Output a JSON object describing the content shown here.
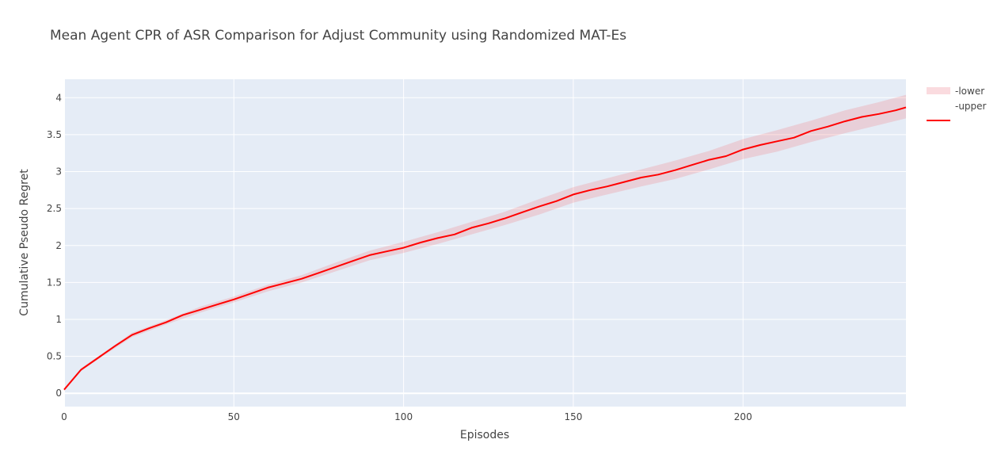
{
  "chart_data": {
    "type": "line",
    "title": "Mean Agent CPR of ASR Comparison for Adjust Community using Randomized MAT-Es",
    "xlabel": "Episodes",
    "ylabel": "Cumulative Pseudo Regret",
    "xlim": [
      0,
      248
    ],
    "ylim": [
      -0.18,
      4.25
    ],
    "x_ticks": [
      "0",
      "50",
      "100",
      "150",
      "200"
    ],
    "y_ticks": [
      "0",
      "0.5",
      "1",
      "1.5",
      "2",
      "2.5",
      "3",
      "3.5",
      "4"
    ],
    "grid": true,
    "legend_position": "top-right",
    "colors": {
      "plot_background": "#E5ECF6",
      "grid": "#FFFFFF",
      "mean_line": "#FF0000",
      "band": "rgba(255,0,0,0.12)",
      "band_legend": "#FADBDF"
    },
    "series": [
      {
        "name": "-lower",
        "role": "band-lower",
        "x": [
          0,
          5,
          10,
          15,
          20,
          30,
          40,
          50,
          60,
          70,
          80,
          90,
          100,
          110,
          120,
          130,
          140,
          150,
          160,
          170,
          180,
          190,
          200,
          210,
          220,
          230,
          240,
          248
        ],
        "values": [
          0.03,
          0.3,
          0.46,
          0.61,
          0.76,
          0.93,
          1.09,
          1.23,
          1.38,
          1.5,
          1.65,
          1.8,
          1.9,
          2.02,
          2.15,
          2.28,
          2.42,
          2.58,
          2.69,
          2.8,
          2.9,
          3.03,
          3.17,
          3.27,
          3.4,
          3.52,
          3.63,
          3.72
        ]
      },
      {
        "name": "-upper",
        "role": "band-upper",
        "x": [
          0,
          5,
          10,
          15,
          20,
          30,
          40,
          50,
          60,
          70,
          80,
          90,
          100,
          110,
          120,
          130,
          140,
          150,
          160,
          170,
          180,
          190,
          200,
          210,
          220,
          230,
          240,
          248
        ],
        "values": [
          0.07,
          0.34,
          0.5,
          0.66,
          0.82,
          0.99,
          1.17,
          1.31,
          1.47,
          1.6,
          1.77,
          1.93,
          2.05,
          2.18,
          2.32,
          2.46,
          2.63,
          2.79,
          2.91,
          3.03,
          3.15,
          3.28,
          3.44,
          3.56,
          3.69,
          3.83,
          3.94,
          4.04
        ]
      },
      {
        "name": "",
        "role": "mean",
        "x": [
          0,
          5,
          10,
          15,
          20,
          25,
          30,
          35,
          40,
          45,
          50,
          55,
          60,
          65,
          70,
          75,
          80,
          85,
          90,
          95,
          100,
          105,
          110,
          115,
          120,
          125,
          130,
          135,
          140,
          145,
          150,
          155,
          160,
          165,
          170,
          175,
          180,
          185,
          190,
          195,
          200,
          205,
          210,
          215,
          220,
          225,
          230,
          235,
          240,
          245,
          248
        ],
        "values": [
          0.05,
          0.32,
          0.48,
          0.64,
          0.79,
          0.88,
          0.96,
          1.06,
          1.13,
          1.2,
          1.27,
          1.35,
          1.43,
          1.49,
          1.55,
          1.63,
          1.71,
          1.79,
          1.87,
          1.92,
          1.97,
          2.04,
          2.1,
          2.15,
          2.24,
          2.3,
          2.37,
          2.45,
          2.53,
          2.6,
          2.69,
          2.75,
          2.8,
          2.86,
          2.92,
          2.96,
          3.02,
          3.09,
          3.16,
          3.21,
          3.3,
          3.36,
          3.41,
          3.46,
          3.55,
          3.61,
          3.68,
          3.74,
          3.78,
          3.83,
          3.87
        ]
      }
    ]
  }
}
